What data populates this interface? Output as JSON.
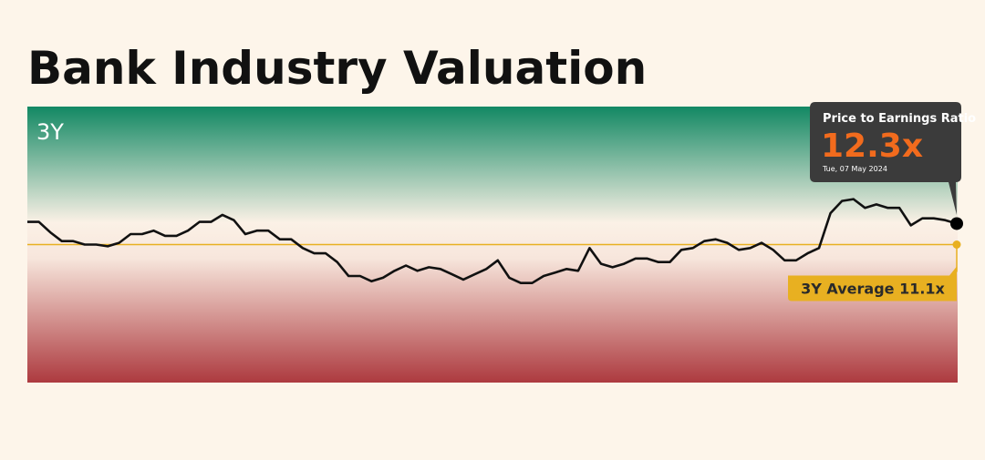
{
  "chart_data": {
    "type": "line",
    "title": "Bank Industry Valuation",
    "period": "3Y",
    "values": [
      12.4,
      12.4,
      11.8,
      11.3,
      11.3,
      11.1,
      11.1,
      11.0,
      11.2,
      11.7,
      11.7,
      11.9,
      11.6,
      11.6,
      11.9,
      12.4,
      12.4,
      12.8,
      12.5,
      11.7,
      11.9,
      11.9,
      11.4,
      11.4,
      10.9,
      10.6,
      10.6,
      10.1,
      9.3,
      9.3,
      9.0,
      9.2,
      9.6,
      9.9,
      9.6,
      9.8,
      9.7,
      9.4,
      9.1,
      9.4,
      9.7,
      10.2,
      9.2,
      8.9,
      8.9,
      9.3,
      9.5,
      9.7,
      9.6,
      10.9,
      10.0,
      9.8,
      10.0,
      10.3,
      10.3,
      10.1,
      10.1,
      10.8,
      10.9,
      11.3,
      11.4,
      11.2,
      10.8,
      10.9,
      11.2,
      10.8,
      10.2,
      10.2,
      10.6,
      10.9,
      12.9,
      13.6,
      13.7,
      13.2,
      13.4,
      13.2,
      13.2,
      12.2,
      12.6,
      12.6,
      12.5,
      12.3
    ],
    "color": "#111111",
    "ylim": [
      3.2,
      19.0
    ],
    "average": {
      "value": 11.1,
      "label": "3Y Average 11.1x",
      "color": "#e8b021"
    },
    "tooltip": {
      "title": "Price to Earnings Ratio",
      "value_label": "12.3x",
      "date": "Tue, 07 May 2024"
    }
  }
}
